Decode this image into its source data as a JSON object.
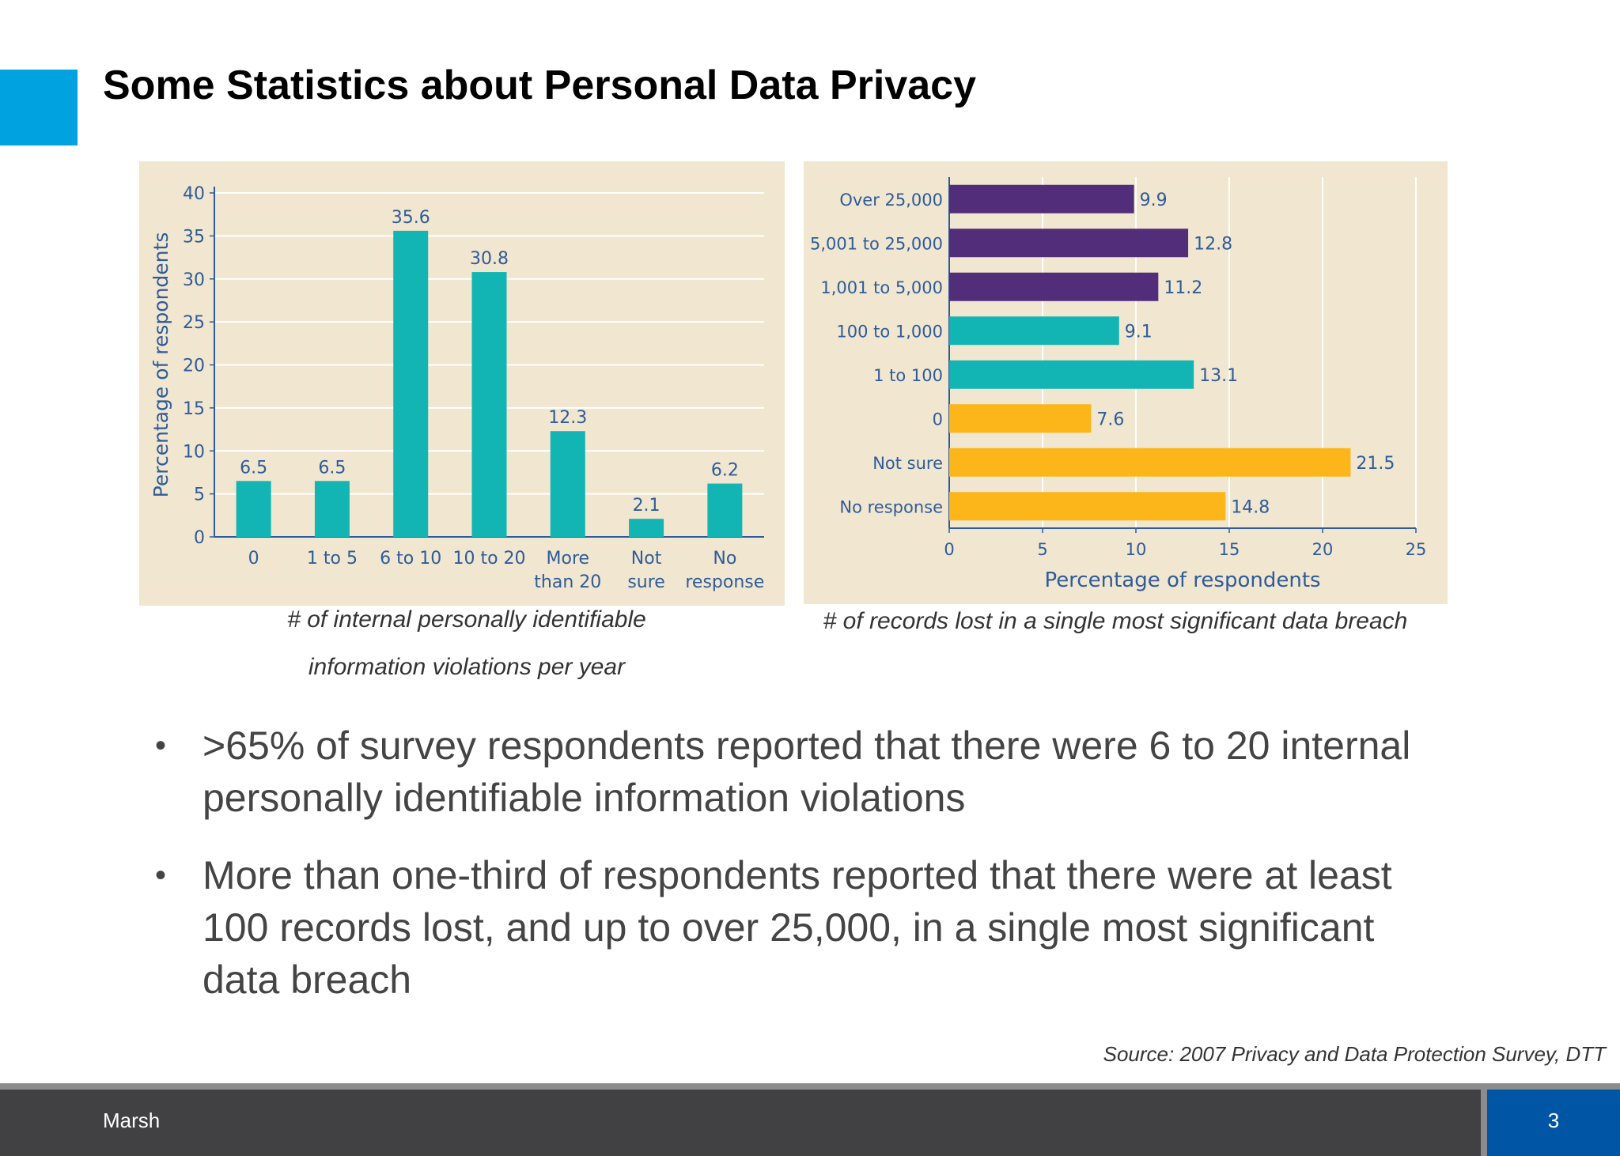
{
  "slide": {
    "title": "Some Statistics about Personal Data Privacy",
    "caption_left_line1": "# of internal personally identifiable",
    "caption_left_line2": "information violations per year",
    "caption_right": "# of records lost in a single most significant data breach",
    "bullets": [
      ">65% of survey respondents reported that there were 6 to 20 internal personally identifiable information violations",
      "More than one-third of respondents reported that there were at least 100 records lost, and up to over 25,000, in a single most significant data breach"
    ],
    "bullet_glyph": "•",
    "source": "Source: 2007 Privacy and Data Protection Survey, DTT",
    "footer_brand": "Marsh",
    "page_number": "3"
  },
  "colors": {
    "accent": "#00a3e0",
    "panel": "#f1e6cf",
    "teal": "#12b5b3",
    "purple": "#522d7a",
    "yellow": "#fcb61a",
    "axis_text": "#2e5c9a",
    "footer": "#414042",
    "page_box": "#0056a4"
  },
  "chart_data": [
    {
      "type": "bar",
      "orientation": "vertical",
      "categories": [
        "0",
        "1 to 5",
        "6 to 10",
        "10 to 20",
        "More than 20",
        "Not sure",
        "No response"
      ],
      "category_lines": [
        [
          "0"
        ],
        [
          "1 to 5"
        ],
        [
          "6 to 10"
        ],
        [
          "10 to 20"
        ],
        [
          "More",
          "than 20"
        ],
        [
          "Not",
          "sure"
        ],
        [
          "No",
          "response"
        ]
      ],
      "values": [
        6.5,
        6.5,
        35.6,
        30.8,
        12.3,
        2.1,
        6.2
      ],
      "value_labels": [
        "6.5",
        "6.5",
        "35.6",
        "30.8",
        "12.3",
        "2.1",
        "6.2"
      ],
      "ylabel": "Percentage of respondents",
      "ylim": [
        0,
        40
      ],
      "yticks": [
        "0",
        "5",
        "10",
        "15",
        "20",
        "25",
        "30",
        "35",
        "40"
      ],
      "grid": true,
      "bar_color": "#12b5b3"
    },
    {
      "type": "bar",
      "orientation": "horizontal",
      "categories": [
        "Over 25,000",
        "5,001 to 25,000",
        "1,001 to 5,000",
        "100 to 1,000",
        "1 to 100",
        "0",
        "Not sure",
        "No response"
      ],
      "values": [
        9.9,
        12.8,
        11.2,
        9.1,
        13.1,
        7.6,
        21.5,
        14.8
      ],
      "value_labels": [
        "9.9",
        "12.8",
        "11.2",
        "9.1",
        "13.1",
        "7.6",
        "21.5",
        "14.8"
      ],
      "bar_colors": [
        "#522d7a",
        "#522d7a",
        "#522d7a",
        "#12b5b3",
        "#12b5b3",
        "#fcb61a",
        "#fcb61a",
        "#fcb61a"
      ],
      "xlabel": "Percentage of respondents",
      "xlim": [
        0,
        25
      ],
      "xticks": [
        "0",
        "5",
        "10",
        "15",
        "20",
        "25"
      ],
      "grid": true
    }
  ]
}
